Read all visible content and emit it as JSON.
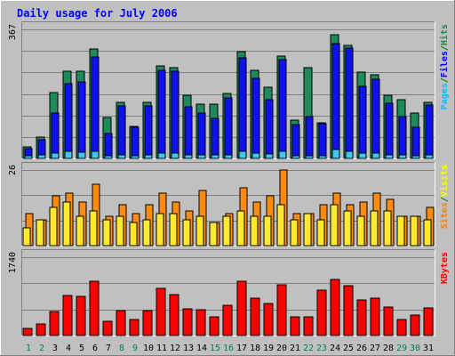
{
  "chart_data": {
    "type": "bar",
    "title": "Daily usage for July 2006",
    "categories": [
      "1",
      "2",
      "3",
      "4",
      "5",
      "6",
      "7",
      "8",
      "9",
      "10",
      "11",
      "12",
      "13",
      "14",
      "15",
      "16",
      "17",
      "18",
      "19",
      "20",
      "21",
      "22",
      "23",
      "24",
      "25",
      "26",
      "27",
      "28",
      "29",
      "30",
      "31"
    ],
    "weekend_days": [
      "1",
      "2",
      "8",
      "9",
      "15",
      "16",
      "22",
      "23",
      "29",
      "30"
    ],
    "panels": [
      {
        "name": "hits-files-pages",
        "ylim": [
          0,
          367
        ],
        "max_label": "367",
        "right_label": [
          "Pages",
          "/",
          "Files",
          "/",
          "Hits"
        ],
        "right_label_colors": [
          "#00c0ff",
          "#008000",
          "#0000ff",
          "#008000",
          "#1f8a5a"
        ],
        "series": [
          {
            "name": "Hits",
            "color": "#1f8a5a",
            "values": [
              34,
              62,
              188,
              248,
              248,
              311,
              116,
              160,
              92,
              160,
              263,
              257,
              179,
              155,
              155,
              186,
              304,
              250,
              202,
              291,
              108,
              257,
              100,
              352,
              322,
              245,
              239,
              179,
              167,
              130,
              160
            ]
          },
          {
            "name": "Files",
            "color": "#1010f0",
            "values": [
              28,
              54,
              130,
              213,
              218,
              288,
              70,
              150,
              88,
              150,
              250,
              248,
              146,
              130,
              113,
              171,
              286,
              228,
              168,
              281,
              95,
              120,
              98,
              326,
              313,
              204,
              224,
              157,
              118,
              89,
              153
            ]
          },
          {
            "name": "Pages",
            "color": "#40c8f0",
            "values": [
              8,
              9,
              15,
              19,
              17,
              20,
              8,
              9,
              8,
              9,
              16,
              14,
              11,
              9,
              10,
              11,
              19,
              15,
              13,
              20,
              8,
              8,
              8,
              25,
              19,
              14,
              14,
              10,
              9,
              8,
              9
            ]
          }
        ]
      },
      {
        "name": "visits-sites",
        "ylim": [
          0,
          26
        ],
        "max_label": "26",
        "right_label": [
          "Sites",
          "/",
          "Visits"
        ],
        "right_label_colors": [
          "#ff8000",
          "#008000",
          "#ffff00"
        ],
        "series": [
          {
            "name": "Visits",
            "color": "#ff8c10",
            "values": [
              11,
              9,
              17,
              18,
              15,
              21,
              10,
              14,
              11,
              14,
              18,
              15,
              12,
              19,
              8,
              11,
              20,
              15,
              17,
              26,
              11,
              11,
              14,
              18,
              14,
              15,
              18,
              16,
              10,
              10,
              13
            ]
          },
          {
            "name": "Sites",
            "color": "#ffe830",
            "values": [
              6,
              9,
              13,
              15,
              10,
              12,
              9,
              10,
              8,
              9,
              11,
              11,
              9,
              10,
              8,
              10,
              12,
              10,
              10,
              14,
              9,
              11,
              9,
              14,
              12,
              10,
              12,
              12,
              10,
              10,
              9
            ]
          }
        ]
      },
      {
        "name": "kbytes",
        "ylim": [
          0,
          1740
        ],
        "max_label": "1740",
        "right_label": [
          "KBytes"
        ],
        "right_label_colors": [
          "#ff0000"
        ],
        "series": [
          {
            "name": "KBytes",
            "color": "#ff0000",
            "values": [
              160,
              256,
              525,
              890,
              870,
              1200,
              318,
              550,
              360,
              545,
              1040,
              915,
              595,
              575,
              420,
              680,
              1200,
              840,
              705,
              1130,
              420,
              425,
              1000,
              1250,
              1110,
              800,
              825,
              630,
              355,
              456,
              610
            ]
          }
        ]
      }
    ]
  }
}
